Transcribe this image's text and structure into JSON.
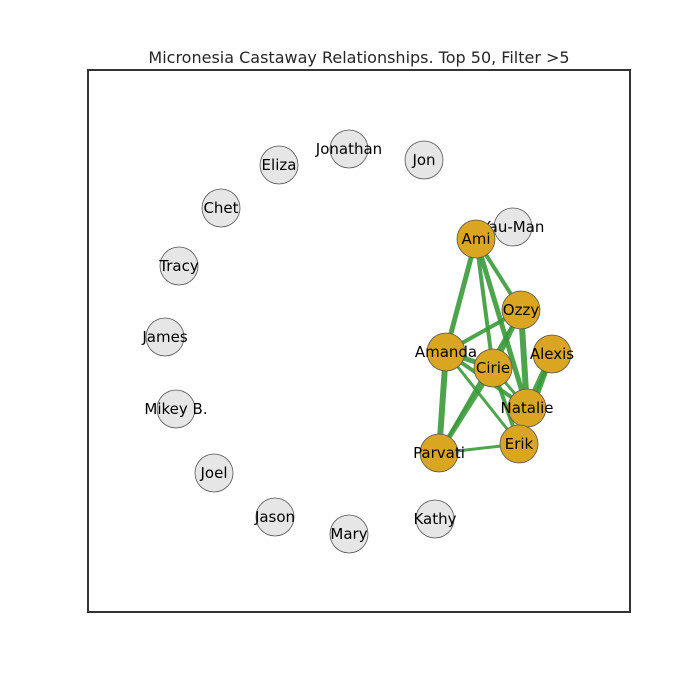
{
  "title": "Micronesia Castaway Relationships. Top 50, Filter >5",
  "colors": {
    "active_node": "#daa520",
    "inactive_node": "#e6e6e6",
    "edge": "#3a9a3a",
    "frame": "#333333"
  },
  "nodes": [
    {
      "id": "Jonathan",
      "label": "Jonathan",
      "group": "inactive"
    },
    {
      "id": "Jon",
      "label": "Jon",
      "group": "inactive"
    },
    {
      "id": "Eliza",
      "label": "Eliza",
      "group": "inactive"
    },
    {
      "id": "Chet",
      "label": "Chet",
      "group": "inactive"
    },
    {
      "id": "Tracy",
      "label": "Tracy",
      "group": "inactive"
    },
    {
      "id": "James",
      "label": "James",
      "group": "inactive"
    },
    {
      "id": "MikeyB",
      "label": "Mikey B.",
      "group": "inactive"
    },
    {
      "id": "Joel",
      "label": "Joel",
      "group": "inactive"
    },
    {
      "id": "Jason",
      "label": "Jason",
      "group": "inactive"
    },
    {
      "id": "Mary",
      "label": "Mary",
      "group": "inactive"
    },
    {
      "id": "Kathy",
      "label": "Kathy",
      "group": "inactive"
    },
    {
      "id": "YauMan",
      "label": "Yau-Man",
      "group": "inactive"
    },
    {
      "id": "Ami",
      "label": "Ami",
      "group": "active"
    },
    {
      "id": "Ozzy",
      "label": "Ozzy",
      "group": "active"
    },
    {
      "id": "Amanda",
      "label": "Amanda",
      "group": "active"
    },
    {
      "id": "Alexis",
      "label": "Alexis",
      "group": "active"
    },
    {
      "id": "Cirie",
      "label": "Cirie",
      "group": "active"
    },
    {
      "id": "Natalie",
      "label": "Natalie",
      "group": "active"
    },
    {
      "id": "Erik",
      "label": "Erik",
      "group": "active"
    },
    {
      "id": "Parvati",
      "label": "Parvati",
      "group": "active"
    }
  ],
  "edges": [
    {
      "source": "Ami",
      "target": "Ozzy",
      "weight": 4
    },
    {
      "source": "Ami",
      "target": "Amanda",
      "weight": 5
    },
    {
      "source": "Ami",
      "target": "Cirie",
      "weight": 4
    },
    {
      "source": "Ami",
      "target": "Natalie",
      "weight": 5
    },
    {
      "source": "Ozzy",
      "target": "Amanda",
      "weight": 4
    },
    {
      "source": "Ozzy",
      "target": "Cirie",
      "weight": 5
    },
    {
      "source": "Ozzy",
      "target": "Natalie",
      "weight": 6
    },
    {
      "source": "Ozzy",
      "target": "Parvati",
      "weight": 3
    },
    {
      "source": "Amanda",
      "target": "Cirie",
      "weight": 5
    },
    {
      "source": "Amanda",
      "target": "Natalie",
      "weight": 4
    },
    {
      "source": "Amanda",
      "target": "Erik",
      "weight": 3
    },
    {
      "source": "Amanda",
      "target": "Parvati",
      "weight": 6
    },
    {
      "source": "Cirie",
      "target": "Parvati",
      "weight": 5
    },
    {
      "source": "Cirie",
      "target": "Erik",
      "weight": 4
    },
    {
      "source": "Cirie",
      "target": "Natalie",
      "weight": 3
    },
    {
      "source": "Alexis",
      "target": "Natalie",
      "weight": 6
    },
    {
      "source": "Alexis",
      "target": "Erik",
      "weight": 5
    },
    {
      "source": "Natalie",
      "target": "Erik",
      "weight": 5
    },
    {
      "source": "Erik",
      "target": "Parvati",
      "weight": 3
    }
  ]
}
